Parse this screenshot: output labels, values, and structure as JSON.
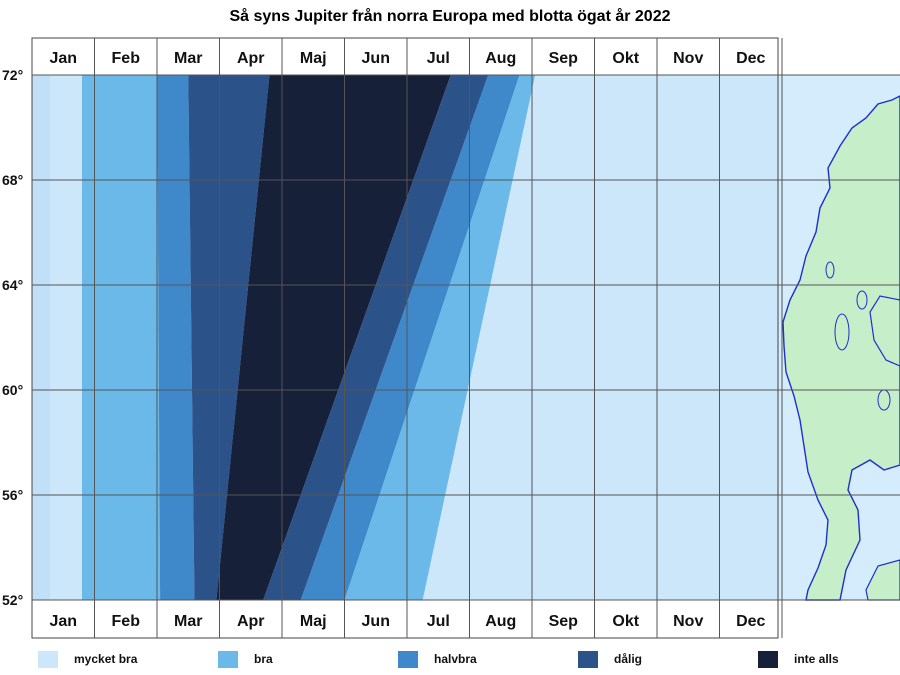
{
  "chart_data": {
    "type": "heatmap",
    "title": "Så syns Jupiter från norra Europa med blotta ögat år 2022",
    "xlabel": "",
    "ylabel": "",
    "x_ticks": [
      "Jan",
      "Feb",
      "Mar",
      "Apr",
      "Maj",
      "Jun",
      "Jul",
      "Aug",
      "Sep",
      "Okt",
      "Nov",
      "Dec"
    ],
    "y_ticks": [
      "72°",
      "68°",
      "64°",
      "60°",
      "56°",
      "52°"
    ],
    "y_values": [
      72,
      68,
      64,
      60,
      56,
      52
    ],
    "ylim": [
      52,
      72
    ],
    "grid": true,
    "legend_position": "bottom",
    "categories": [
      {
        "key": "mycket_bra",
        "name": "mycket bra",
        "color": "#cde7fa"
      },
      {
        "key": "bra",
        "name": "bra",
        "color": "#6ab9e8"
      },
      {
        "key": "halvbra",
        "name": "halvbra",
        "color": "#3f89cb"
      },
      {
        "key": "dalig",
        "name": "dålig",
        "color": "#2b5389"
      },
      {
        "key": "inte_alls",
        "name": "inte alls",
        "color": "#162039"
      }
    ],
    "band_boundaries_month": [
      {
        "lat": 72,
        "mycket_bra_end": 0.8,
        "bra_end": 2.0,
        "halvbra_end": 2.5,
        "dalig_end": 3.8,
        "inte_alls_end": 6.7,
        "dalig2_end": 7.3,
        "halvbra2_end": 7.8,
        "bra2_end": 8.05
      },
      {
        "lat": 52,
        "mycket_bra_end": 0.8,
        "bra_end": 2.05,
        "halvbra_end": 2.6,
        "dalig_end": 2.95,
        "inte_alls_end": 3.7,
        "dalig2_end": 4.3,
        "halvbra2_end": 5.0,
        "bra2_end": 6.25
      }
    ]
  },
  "legend": {
    "mycket_bra": "mycket bra",
    "bra": "bra",
    "halvbra": "halvbra",
    "dalig": "dålig",
    "inte_alls": "inte alls"
  },
  "colors": {
    "background_late": "#cde7fa",
    "map_land": "#c6efc9",
    "map_sea": "#d4ecfb",
    "coastline": "#1f2fcf",
    "grid": "#555555"
  }
}
